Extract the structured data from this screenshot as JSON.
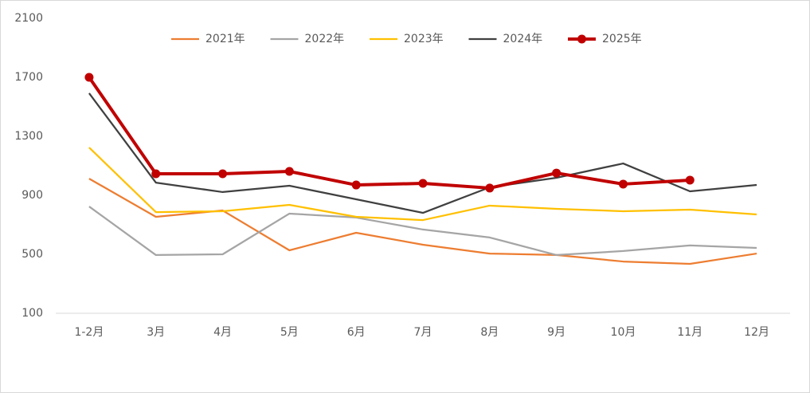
{
  "chart_data": {
    "type": "line",
    "categories": [
      "1-2月",
      "3月",
      "4月",
      "5月",
      "6月",
      "7月",
      "8月",
      "9月",
      "10月",
      "11月",
      "12月"
    ],
    "series": [
      {
        "name": "2021年",
        "color": "#ED7D31",
        "values": [
          1013,
          754,
          797,
          527,
          646,
          565,
          505,
          495,
          451,
          435,
          505
        ]
      },
      {
        "name": "2022年",
        "color": "#A5A5A5",
        "values": [
          824,
          495,
          500,
          776,
          749,
          668,
          614,
          495,
          522,
          560,
          543
        ]
      },
      {
        "name": "2023年",
        "color": "#FFC000",
        "values": [
          1224,
          786,
          792,
          835,
          754,
          732,
          830,
          808,
          792,
          803,
          770
        ]
      },
      {
        "name": "2024年",
        "color": "#404040",
        "values": [
          1592,
          986,
          922,
          965,
          873,
          781,
          954,
          1019,
          1116,
          927,
          970
        ]
      },
      {
        "name": "2025年",
        "color": "#C00000",
        "marker": true,
        "values": [
          1700,
          1046,
          1046,
          1062,
          970,
          981,
          949,
          1051,
          976,
          1003,
          null
        ]
      }
    ],
    "ylim": [
      100,
      2100
    ],
    "yticks": [
      100,
      500,
      900,
      1300,
      1700,
      2100
    ],
    "grid": false,
    "legend": "top"
  }
}
